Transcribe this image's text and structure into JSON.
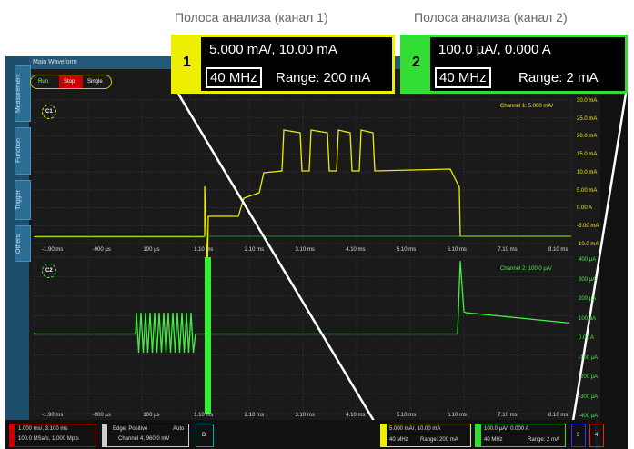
{
  "callouts": {
    "ch1_label": "Полоса анализа (канал 1)",
    "ch2_label": "Полоса анализа (канал 2)",
    "ch1": {
      "number": "1",
      "scale": "5.000 mA/, 10.00 mA",
      "bandwidth": "40 MHz",
      "range": "Range: 200 mA"
    },
    "ch2": {
      "number": "2",
      "scale": "100.0 µA/, 0.000 A",
      "bandwidth": "40 MHz",
      "range": "Range: 2 mA"
    }
  },
  "window": {
    "title": "Main Waveform",
    "buttons": [
      "Run",
      "Stop",
      "Single"
    ],
    "tabs": [
      "Measurement",
      "Function",
      "Trigger",
      "Others"
    ],
    "upper": {
      "badge": "C1",
      "info": "Channel 1: 5.000 mA/",
      "y_labels": [
        "30.0 mA",
        "25.0 mA",
        "20.0 mA",
        "15.0 mA",
        "10.0 mA",
        "5.00 mA",
        "0.00 A",
        "-5.00 mA",
        "-10.0 mA"
      ]
    },
    "lower": {
      "badge": "C2",
      "info": "Channel 2: 100.0 µA/",
      "y_labels": [
        "400 µA",
        "300 µA",
        "200 µA",
        "100 µA",
        "0.00 A",
        "-100 µA",
        "-200 µA",
        "-300 µA",
        "-400 µA"
      ]
    },
    "time_labels": [
      "-1.90 ms",
      "-900 µs",
      "100 µs",
      "1.10 ms",
      "2.10 ms",
      "3.10 ms",
      "4.10 ms",
      "5.10 ms",
      "6.10 ms",
      "7.10 ms",
      "8.10 ms"
    ]
  },
  "footer": {
    "timebase": [
      "1.000 ms/, 3.100 ms",
      "100.0 MSa/s, 1.000 Mpts"
    ],
    "trigger": [
      "Edge, Positive",
      "Auto",
      "Channel 4, 960.0 mV"
    ],
    "d": "D",
    "ch1": [
      "5.000 mA/, 10.00 mA",
      "40 MHz",
      "Range: 200 mA"
    ],
    "ch2": [
      "100.0 µA/, 0.000 A",
      "40 MHz",
      "Range: 2 mA"
    ],
    "ch3": "3",
    "ch4": "4"
  }
}
